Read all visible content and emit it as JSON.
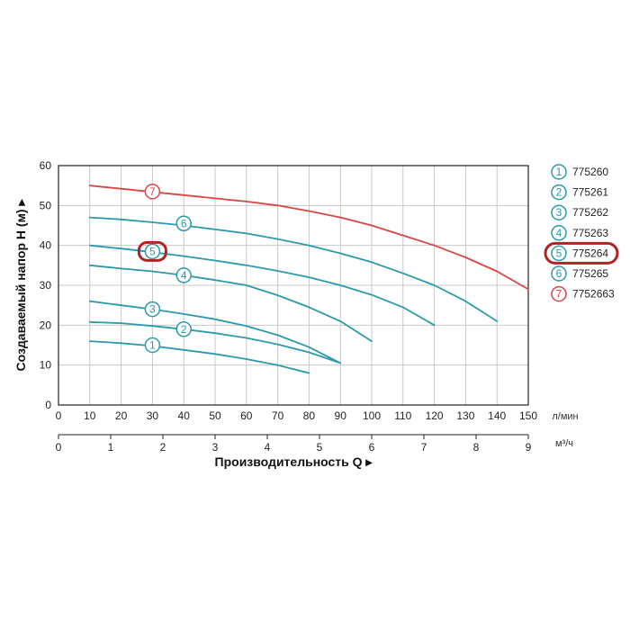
{
  "chart_data": {
    "type": "line",
    "title": "",
    "ylabel": "Создаваемый напор H (м) ▸",
    "xlabel": "Производительность Q ▸",
    "x_unit_primary": "л/мин",
    "x_unit_secondary": "м³/ч",
    "xlim": [
      0,
      150
    ],
    "ylim": [
      0,
      60
    ],
    "x_ticks": [
      0,
      10,
      20,
      30,
      40,
      50,
      60,
      70,
      80,
      90,
      100,
      110,
      120,
      130,
      140,
      150
    ],
    "y_ticks": [
      0,
      10,
      20,
      30,
      40,
      50,
      60
    ],
    "x2_ticks": [
      0,
      1,
      2,
      3,
      4,
      5,
      6,
      7,
      8,
      9
    ],
    "grid": true,
    "legend_position": "right",
    "highlighted_series": "5",
    "colors": {
      "blue": "#2b9aaa",
      "red": "#d94545",
      "highlight": "#b22222"
    },
    "series": [
      {
        "name": "775260",
        "number": "1",
        "color": "blue",
        "x": [
          10,
          20,
          30,
          40,
          50,
          60,
          70,
          80
        ],
        "y": [
          16,
          15.5,
          14.8,
          13.8,
          12.8,
          11.5,
          10,
          8
        ],
        "label_at": [
          30,
          15
        ]
      },
      {
        "name": "775261",
        "number": "2",
        "color": "blue",
        "x": [
          10,
          20,
          30,
          40,
          50,
          60,
          70,
          80,
          90
        ],
        "y": [
          20.8,
          20.5,
          19.8,
          19,
          18,
          16.8,
          15.2,
          13.2,
          10.5
        ],
        "label_at": [
          40,
          19
        ]
      },
      {
        "name": "775262",
        "number": "3",
        "color": "blue",
        "x": [
          10,
          20,
          30,
          40,
          50,
          60,
          70,
          80,
          90
        ],
        "y": [
          26,
          25,
          24,
          22.8,
          21.5,
          19.8,
          17.5,
          14.5,
          10.5
        ],
        "label_at": [
          30,
          24
        ]
      },
      {
        "name": "775263",
        "number": "4",
        "color": "blue",
        "x": [
          10,
          20,
          30,
          40,
          50,
          60,
          70,
          80,
          90,
          100
        ],
        "y": [
          35,
          34.2,
          33.5,
          32.5,
          31.3,
          30,
          27.5,
          24.5,
          21,
          16
        ],
        "label_at": [
          40,
          32.5
        ]
      },
      {
        "name": "775264",
        "number": "5",
        "color": "blue",
        "x": [
          10,
          20,
          30,
          40,
          50,
          60,
          70,
          80,
          90,
          100,
          110,
          120
        ],
        "y": [
          40,
          39.2,
          38.3,
          37.3,
          36.2,
          35,
          33.6,
          32,
          30,
          27.6,
          24.5,
          20
        ],
        "label_at": [
          30,
          38.5
        ]
      },
      {
        "name": "775265",
        "number": "6",
        "color": "blue",
        "x": [
          10,
          20,
          30,
          40,
          50,
          60,
          70,
          80,
          90,
          100,
          110,
          120,
          130,
          140
        ],
        "y": [
          47,
          46.5,
          45.8,
          45,
          44,
          43,
          41.6,
          40,
          38,
          35.8,
          33,
          30,
          26,
          21
        ],
        "label_at": [
          40,
          45.5
        ]
      },
      {
        "name": "7752663",
        "number": "7",
        "color": "red",
        "x": [
          10,
          20,
          30,
          40,
          50,
          60,
          70,
          80,
          90,
          100,
          110,
          120,
          130,
          140,
          150
        ],
        "y": [
          55,
          54.2,
          53.4,
          52.6,
          51.8,
          51,
          50,
          48.6,
          47,
          45,
          42.5,
          40,
          37,
          33.5,
          29
        ],
        "label_at": [
          30,
          53.5
        ]
      }
    ]
  }
}
